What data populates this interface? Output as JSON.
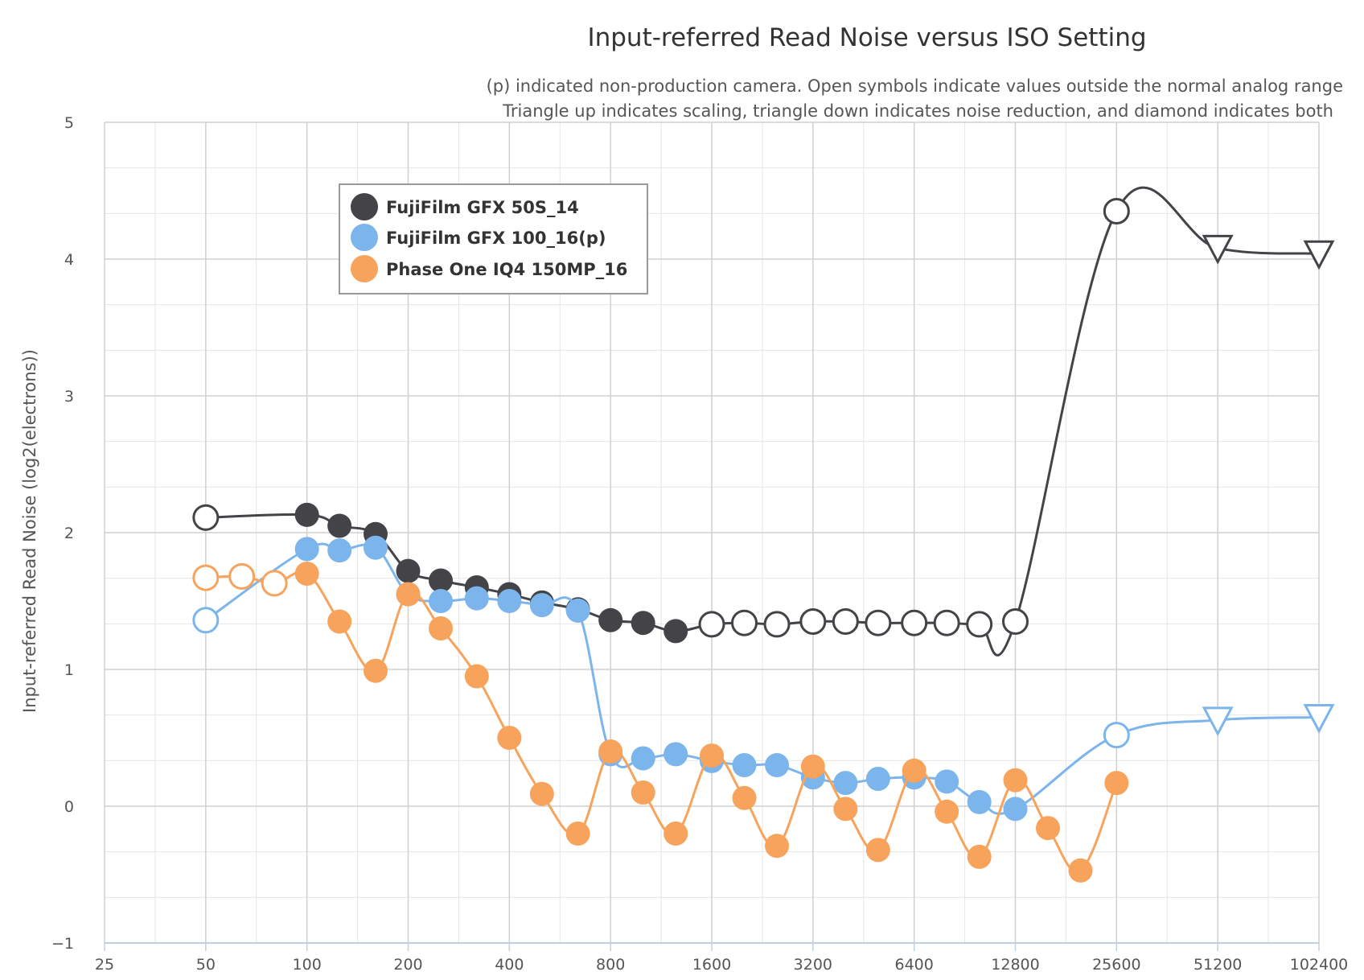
{
  "chart_data": {
    "type": "line",
    "title": "Input-referred Read Noise versus ISO Setting",
    "subtitle_lines": [
      "(p) indicated non-production camera. Open symbols indicate values outside the normal analog range",
      "Triangle up indicates scaling, triangle down indicates noise reduction, and diamond indicates both"
    ],
    "ylabel": "Input-referred Read Noise (log2(electrons))",
    "xlabel": "",
    "x_scale": "log2",
    "xlim": [
      25,
      102400
    ],
    "ylim": [
      -1,
      5
    ],
    "x_ticks": [
      25,
      50,
      100,
      200,
      400,
      800,
      1600,
      3200,
      6400,
      12800,
      25600,
      51200,
      102400
    ],
    "y_ticks": [
      -1,
      0,
      1,
      2,
      3,
      4,
      5
    ],
    "grid": true,
    "legend_position": "top-left",
    "series": [
      {
        "name": "FujiFilm GFX 50S_14",
        "color": "#434348",
        "points": [
          {
            "x": 50,
            "y": 2.11,
            "marker": "open-circle"
          },
          {
            "x": 100,
            "y": 2.13,
            "marker": "circle"
          },
          {
            "x": 125,
            "y": 2.05,
            "marker": "circle"
          },
          {
            "x": 160,
            "y": 1.99,
            "marker": "circle"
          },
          {
            "x": 200,
            "y": 1.72,
            "marker": "circle"
          },
          {
            "x": 250,
            "y": 1.65,
            "marker": "circle"
          },
          {
            "x": 320,
            "y": 1.6,
            "marker": "circle"
          },
          {
            "x": 400,
            "y": 1.55,
            "marker": "circle"
          },
          {
            "x": 500,
            "y": 1.49,
            "marker": "circle"
          },
          {
            "x": 640,
            "y": 1.44,
            "marker": "circle"
          },
          {
            "x": 800,
            "y": 1.36,
            "marker": "circle"
          },
          {
            "x": 1000,
            "y": 1.34,
            "marker": "circle"
          },
          {
            "x": 1250,
            "y": 1.28,
            "marker": "circle"
          },
          {
            "x": 1600,
            "y": 1.33,
            "marker": "open-circle"
          },
          {
            "x": 2000,
            "y": 1.34,
            "marker": "open-circle"
          },
          {
            "x": 2500,
            "y": 1.33,
            "marker": "open-circle"
          },
          {
            "x": 3200,
            "y": 1.35,
            "marker": "open-circle"
          },
          {
            "x": 4000,
            "y": 1.35,
            "marker": "open-circle"
          },
          {
            "x": 5000,
            "y": 1.34,
            "marker": "open-circle"
          },
          {
            "x": 6400,
            "y": 1.34,
            "marker": "open-circle"
          },
          {
            "x": 8000,
            "y": 1.34,
            "marker": "open-circle"
          },
          {
            "x": 10000,
            "y": 1.33,
            "marker": "open-circle"
          },
          {
            "x": 12800,
            "y": 1.35,
            "marker": "open-circle"
          },
          {
            "x": 25600,
            "y": 4.35,
            "marker": "open-circle"
          },
          {
            "x": 51200,
            "y": 4.08,
            "marker": "triangle-down"
          },
          {
            "x": 102400,
            "y": 4.04,
            "marker": "triangle-down"
          }
        ]
      },
      {
        "name": "FujiFilm GFX 100_16(p)",
        "color": "#7cb5ec",
        "points": [
          {
            "x": 50,
            "y": 1.36,
            "marker": "open-circle"
          },
          {
            "x": 100,
            "y": 1.88,
            "marker": "circle"
          },
          {
            "x": 125,
            "y": 1.87,
            "marker": "circle"
          },
          {
            "x": 160,
            "y": 1.89,
            "marker": "circle"
          },
          {
            "x": 200,
            "y": 1.55,
            "marker": "circle"
          },
          {
            "x": 250,
            "y": 1.5,
            "marker": "circle"
          },
          {
            "x": 320,
            "y": 1.52,
            "marker": "circle"
          },
          {
            "x": 400,
            "y": 1.5,
            "marker": "circle"
          },
          {
            "x": 500,
            "y": 1.47,
            "marker": "circle"
          },
          {
            "x": 640,
            "y": 1.43,
            "marker": "circle"
          },
          {
            "x": 800,
            "y": 0.38,
            "marker": "circle"
          },
          {
            "x": 1000,
            "y": 0.35,
            "marker": "circle"
          },
          {
            "x": 1250,
            "y": 0.38,
            "marker": "circle"
          },
          {
            "x": 1600,
            "y": 0.33,
            "marker": "circle"
          },
          {
            "x": 2000,
            "y": 0.3,
            "marker": "circle"
          },
          {
            "x": 2500,
            "y": 0.3,
            "marker": "circle"
          },
          {
            "x": 3200,
            "y": 0.21,
            "marker": "circle"
          },
          {
            "x": 4000,
            "y": 0.17,
            "marker": "circle"
          },
          {
            "x": 5000,
            "y": 0.2,
            "marker": "circle"
          },
          {
            "x": 6400,
            "y": 0.21,
            "marker": "circle"
          },
          {
            "x": 8000,
            "y": 0.18,
            "marker": "circle"
          },
          {
            "x": 10000,
            "y": 0.03,
            "marker": "circle"
          },
          {
            "x": 12800,
            "y": -0.02,
            "marker": "circle"
          },
          {
            "x": 25600,
            "y": 0.52,
            "marker": "open-circle"
          },
          {
            "x": 51200,
            "y": 0.63,
            "marker": "triangle-down"
          },
          {
            "x": 102400,
            "y": 0.65,
            "marker": "triangle-down"
          }
        ]
      },
      {
        "name": "Phase One IQ4 150MP_16",
        "color": "#f7a35c",
        "points": [
          {
            "x": 50,
            "y": 1.67,
            "marker": "open-circle"
          },
          {
            "x": 64,
            "y": 1.68,
            "marker": "open-circle"
          },
          {
            "x": 80,
            "y": 1.63,
            "marker": "open-circle"
          },
          {
            "x": 100,
            "y": 1.7,
            "marker": "circle"
          },
          {
            "x": 125,
            "y": 1.35,
            "marker": "circle"
          },
          {
            "x": 160,
            "y": 0.99,
            "marker": "circle"
          },
          {
            "x": 200,
            "y": 1.55,
            "marker": "circle"
          },
          {
            "x": 250,
            "y": 1.3,
            "marker": "circle"
          },
          {
            "x": 320,
            "y": 0.95,
            "marker": "circle"
          },
          {
            "x": 400,
            "y": 0.5,
            "marker": "circle"
          },
          {
            "x": 500,
            "y": 0.09,
            "marker": "circle"
          },
          {
            "x": 640,
            "y": -0.2,
            "marker": "circle"
          },
          {
            "x": 800,
            "y": 0.4,
            "marker": "circle"
          },
          {
            "x": 1000,
            "y": 0.1,
            "marker": "circle"
          },
          {
            "x": 1250,
            "y": -0.2,
            "marker": "circle"
          },
          {
            "x": 1600,
            "y": 0.37,
            "marker": "circle"
          },
          {
            "x": 2000,
            "y": 0.06,
            "marker": "circle"
          },
          {
            "x": 2500,
            "y": -0.29,
            "marker": "circle"
          },
          {
            "x": 3200,
            "y": 0.29,
            "marker": "circle"
          },
          {
            "x": 4000,
            "y": -0.02,
            "marker": "circle"
          },
          {
            "x": 5000,
            "y": -0.32,
            "marker": "circle"
          },
          {
            "x": 6400,
            "y": 0.26,
            "marker": "circle"
          },
          {
            "x": 8000,
            "y": -0.04,
            "marker": "circle"
          },
          {
            "x": 10000,
            "y": -0.37,
            "marker": "circle"
          },
          {
            "x": 12800,
            "y": 0.19,
            "marker": "circle"
          },
          {
            "x": 16000,
            "y": -0.16,
            "marker": "circle"
          },
          {
            "x": 20000,
            "y": -0.47,
            "marker": "circle"
          },
          {
            "x": 25600,
            "y": 0.17,
            "marker": "circle"
          }
        ]
      }
    ]
  }
}
